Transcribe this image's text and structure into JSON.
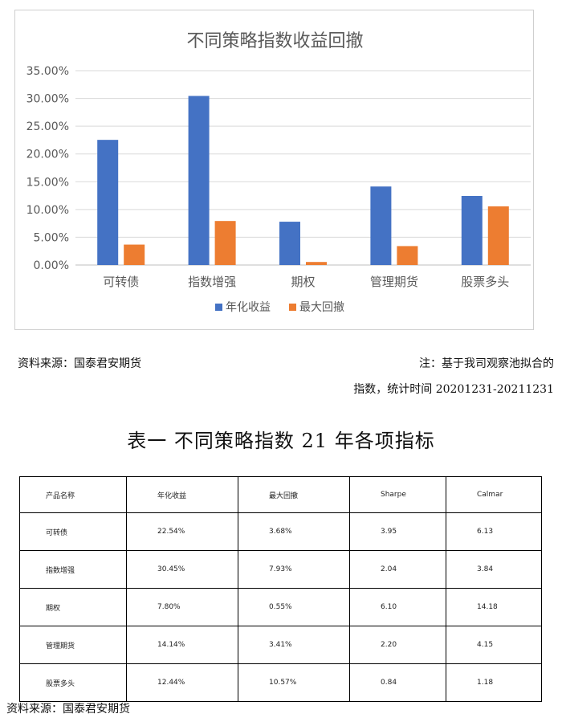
{
  "chart_data": {
    "type": "bar",
    "title": "不同策略指数收益回撤",
    "categories": [
      "可转债",
      "指数增强",
      "期权",
      "管理期货",
      "股票多头"
    ],
    "series": [
      {
        "name": "年化收益",
        "values": [
          22.54,
          30.45,
          7.8,
          14.14,
          12.44
        ],
        "color": "#4472C4"
      },
      {
        "name": "最大回撤",
        "values": [
          3.68,
          7.93,
          0.55,
          3.41,
          10.57
        ],
        "color": "#ED7D31"
      }
    ],
    "y_ticks": [
      "0.00%",
      "5.00%",
      "10.00%",
      "15.00%",
      "20.00%",
      "25.00%",
      "30.00%",
      "35.00%"
    ],
    "ylim": [
      0,
      35
    ],
    "legend_position": "bottom",
    "grid": true
  },
  "source_top": "资料来源：国泰君安期货",
  "note_line1": "注：基于我司观察池拟合的",
  "note_line2": "指数，统计时间 20201231-20211231",
  "table_title": "表一 不同策略指数 21 年各项指标",
  "table": {
    "headers": [
      "产品名称",
      "年化收益",
      "最大回撤",
      "Sharpe",
      "Calmar"
    ],
    "rows": [
      [
        "可转债",
        "22.54%",
        "3.68%",
        "3.95",
        "6.13"
      ],
      [
        "指数增强",
        "30.45%",
        "7.93%",
        "2.04",
        "3.84"
      ],
      [
        "期权",
        "7.80%",
        "0.55%",
        "6.10",
        "14.18"
      ],
      [
        "管理期货",
        "14.14%",
        "3.41%",
        "2.20",
        "4.15"
      ],
      [
        "股票多头",
        "12.44%",
        "10.57%",
        "0.84",
        "1.18"
      ]
    ]
  },
  "source_bottom": "资料来源：国泰君安期货"
}
